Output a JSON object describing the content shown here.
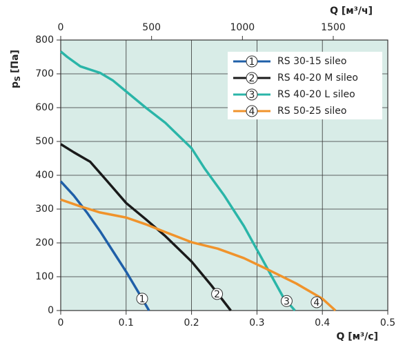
{
  "chart_data": {
    "type": "line",
    "xlabel": "Q [м³/с]",
    "x2label": "Q [м³/ч]",
    "ylabel": "p",
    "ylabel_sub": "S",
    "ylabel_unit": "[Па]",
    "xlim": [
      0,
      0.5
    ],
    "xticks": [
      0,
      0.1,
      0.2,
      0.3,
      0.4,
      0.5
    ],
    "x2lim": [
      0,
      1800
    ],
    "x2ticks": [
      0,
      500,
      1000,
      1500
    ],
    "ylim": [
      0,
      800
    ],
    "yticks": [
      0,
      100,
      200,
      300,
      400,
      500,
      600,
      700,
      800
    ],
    "grid": true,
    "legend": "upper right",
    "series": [
      {
        "name": "RS 30-15 sileo",
        "marker_label": "1",
        "color": "#1f5fa8",
        "x": [
          0,
          0.02,
          0.04,
          0.06,
          0.08,
          0.1,
          0.12,
          0.135
        ],
        "values": [
          382,
          340,
          290,
          235,
          175,
          115,
          50,
          0
        ]
      },
      {
        "name": "RS 40-20 M sileo",
        "marker_label": "2",
        "color": "#1a1a1a",
        "x": [
          0,
          0.02,
          0.045,
          0.07,
          0.1,
          0.13,
          0.16,
          0.2,
          0.23,
          0.26
        ],
        "values": [
          492,
          468,
          440,
          385,
          318,
          270,
          220,
          145,
          75,
          0
        ]
      },
      {
        "name": "RS 40-20 L sileo",
        "marker_label": "3",
        "color": "#2ab5a8",
        "x": [
          0,
          0.01,
          0.03,
          0.06,
          0.08,
          0.1,
          0.13,
          0.16,
          0.2,
          0.22,
          0.25,
          0.28,
          0.3,
          0.32,
          0.34,
          0.358
        ],
        "values": [
          766,
          750,
          722,
          703,
          680,
          648,
          600,
          555,
          480,
          420,
          340,
          250,
          180,
          110,
          40,
          0
        ]
      },
      {
        "name": "RS 50-25 sileo",
        "marker_label": "4",
        "color": "#f0932b",
        "x": [
          0,
          0.03,
          0.06,
          0.1,
          0.13,
          0.16,
          0.2,
          0.24,
          0.28,
          0.32,
          0.36,
          0.4,
          0.42
        ],
        "values": [
          328,
          308,
          290,
          275,
          255,
          232,
          202,
          183,
          155,
          118,
          80,
          35,
          0
        ]
      }
    ]
  }
}
